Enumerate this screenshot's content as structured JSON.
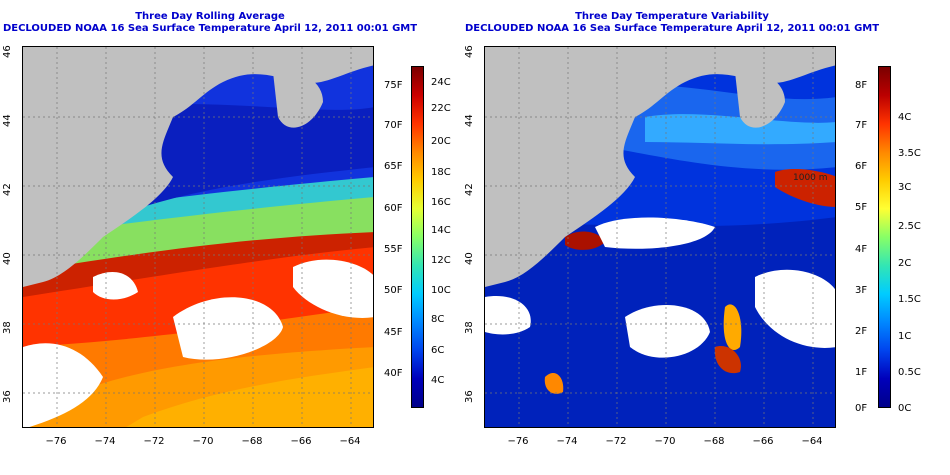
{
  "left_panel": {
    "title_line1": "Three Day Rolling Average",
    "title_line2": "DECLOUDED NOAA 16 Sea Surface Temperature April 12, 2011 00:01 GMT",
    "colorbar_celsius": [
      "24C",
      "22C",
      "20C",
      "18C",
      "16C",
      "14C",
      "12C",
      "10C",
      "8C",
      "6C",
      "4C"
    ],
    "colorbar_fahrenheit": [
      "75F",
      "70F",
      "65F",
      "60F",
      "55F",
      "50F",
      "45F",
      "40F"
    ],
    "colorbar_gradient": [
      "#7a0000",
      "#cc0000",
      "#ff3300",
      "#ff8800",
      "#ffcc00",
      "#e6ff33",
      "#88ff66",
      "#33e6b3",
      "#00ccff",
      "#0088ff",
      "#0044ee",
      "#0000bb",
      "#00008a"
    ]
  },
  "right_panel": {
    "title_line1": "Three Day Temperature Variability",
    "title_line2": "DECLOUDED NOAA 16 Sea Surface Temperature April 12, 2011 00:01 GMT",
    "colorbar_celsius": [
      "4C",
      "3.5C",
      "3C",
      "2.5C",
      "2C",
      "1.5C",
      "1C",
      "0.5C",
      "0C"
    ],
    "colorbar_fahrenheit": [
      "8F",
      "7F",
      "6F",
      "5F",
      "4F",
      "3F",
      "2F",
      "1F",
      "0F"
    ],
    "colorbar_gradient": [
      "#7a0000",
      "#bb0000",
      "#ff3300",
      "#ff8800",
      "#ffcc00",
      "#ffff33",
      "#88ff66",
      "#33e6b3",
      "#00ccff",
      "#0088ff",
      "#0044ee",
      "#0000bb",
      "#00008a"
    ],
    "contour_label": "1000 m"
  },
  "axes": {
    "lat_ticks": [
      "46",
      "44",
      "42",
      "40",
      "38",
      "36"
    ],
    "lon_ticks": [
      "−76",
      "−74",
      "−72",
      "−70",
      "−68",
      "−66",
      "−64"
    ]
  },
  "colors": {
    "land": "#c0c0c0",
    "cloud": "#ffffff",
    "title": "#0000cc"
  }
}
